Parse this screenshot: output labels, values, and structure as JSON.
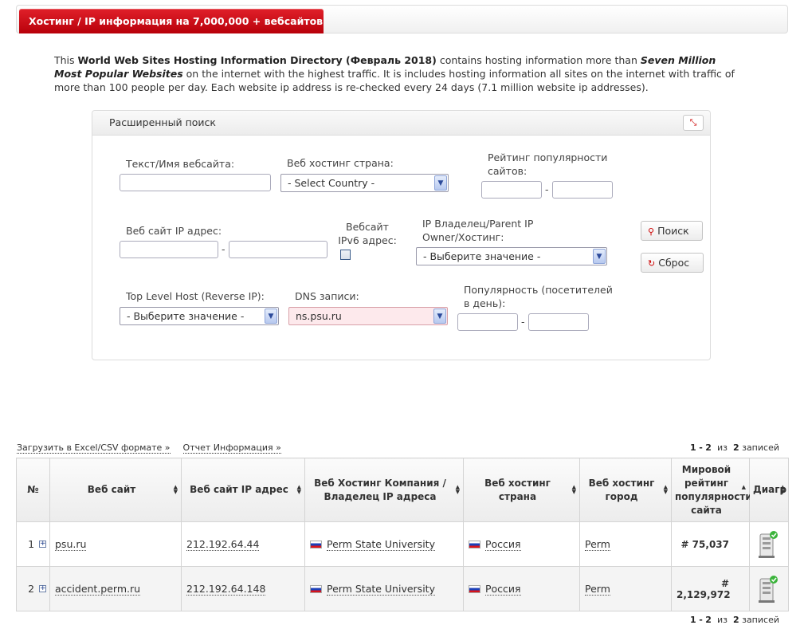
{
  "header": {
    "title": "Хостинг / IP информация на 7,000,000 + вебсайтов"
  },
  "intro": {
    "p1": "This ",
    "p1_bold": "World Web Sites Hosting Information Directory (Февраль 2018)",
    "p2": " contains hosting information more than ",
    "p2_bold": "Seven Million Most Popular Websites",
    "p3": " on the internet with the highest traffic. It is includes hosting information all sites on the internet with traffic of more than 100 people per day. Each website ip address is re-checked every 24 days (7.1 million website ip addresses)."
  },
  "search": {
    "title": "Расширенный поиск",
    "site_text_label": "Текст/Имя вебсайта:",
    "country_label": "Веб хостинг страна:",
    "country_value": "- Select Country -",
    "rank_label": "Рейтинг популярности сайтов:",
    "ip_label": "Веб сайт IP адрес:",
    "ipv6_label": "Вебсайт IPv6 адрес:",
    "owner_label": "IP Владелец/Parent IP Owner/Хостинг:",
    "owner_value": "- Выберите значение -",
    "tld_label": "Top Level Host (Reverse IP):",
    "tld_value": "- Выберите значение -",
    "dns_label": "DNS записи:",
    "dns_value": "ns.psu.ru",
    "visitors_label": "Популярность (посетителей в день):",
    "search_button": "Поиск",
    "reset_button": "Сброс",
    "dash": "-"
  },
  "links": {
    "excel": "Загрузить в Excel/CSV формате »",
    "report": "Отчет Информация »"
  },
  "pager": {
    "from": "1",
    "sep": "-",
    "to": "2",
    "of": "из",
    "total": "2",
    "records": "записей"
  },
  "table": {
    "headers": {
      "num": "№",
      "site": "Веб сайт",
      "ip": "Веб сайт IP адрес",
      "company": "Веб Хостинг Компания / Владелец IP адреса",
      "country": "Веб хостинг страна",
      "city": "Веб хостинг город",
      "rank": "Мировой рейтинг популярности сайта",
      "diagram": "Диагр"
    },
    "rows": [
      {
        "num": "1",
        "site": "psu.ru",
        "ip": "212.192.64.44",
        "company": "Perm State University",
        "country": "Россия",
        "city": "Perm",
        "rank": "# 75,037"
      },
      {
        "num": "2",
        "site": "accident.perm.ru",
        "ip": "212.192.64.148",
        "company": "Perm State University",
        "country": "Россия",
        "city": "Perm",
        "rank": "# 2,129,972"
      }
    ]
  },
  "colors": {
    "accent": "#c8000d",
    "border": "#d4d4d4"
  }
}
